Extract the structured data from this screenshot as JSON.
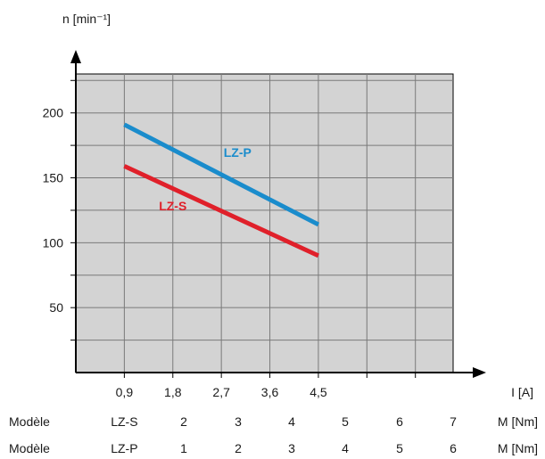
{
  "chart_data": {
    "type": "line",
    "ylabel": "n [min⁻¹]",
    "xlabel": "I [A]",
    "ylim": [
      0,
      230
    ],
    "xlim": [
      0,
      7
    ],
    "grid": true,
    "yticks": [
      50,
      100,
      150,
      200
    ],
    "yticks_minor": [
      25,
      75,
      125,
      175,
      225
    ],
    "xticks": [
      0.9,
      1.8,
      2.7,
      3.6,
      4.5
    ],
    "xtick_labels": [
      "0,9",
      "1,8",
      "2,7",
      "3,6",
      "4,5"
    ],
    "x_gridlines": [
      0.9,
      1.8,
      2.7,
      3.6,
      4.5,
      5.4,
      6.3
    ],
    "colors": {
      "plot_bg": "#d3d3d3",
      "grid": "#7a7a7a",
      "axis": "#000000"
    },
    "series": [
      {
        "name": "LZ-P",
        "color": "#1a8ccc",
        "x": [
          0.9,
          4.5
        ],
        "y": [
          191,
          114
        ],
        "label_at": [
          3.0,
          166
        ]
      },
      {
        "name": "LZ-S",
        "color": "#e0202a",
        "x": [
          0.9,
          4.5
        ],
        "y": [
          159,
          90
        ],
        "label_at": [
          1.8,
          125
        ]
      }
    ],
    "model_rows": [
      {
        "label": "Modèle",
        "model": "LZ-S",
        "values": [
          "2",
          "3",
          "4",
          "5",
          "6",
          "7"
        ],
        "unit": "M [Nm]"
      },
      {
        "label": "Modèle",
        "model": "LZ-P",
        "values": [
          "1",
          "2",
          "3",
          "4",
          "5",
          "6"
        ],
        "unit": "M [Nm]"
      }
    ]
  }
}
